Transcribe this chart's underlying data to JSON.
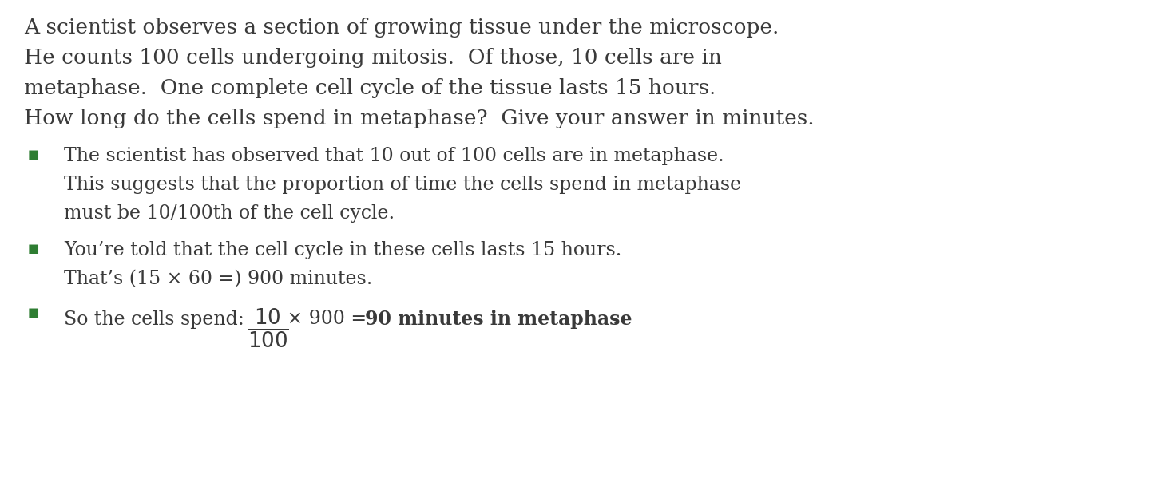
{
  "background_color": "#ffffff",
  "figsize": [
    14.4,
    6.19
  ],
  "dpi": 100,
  "font_family": "DejaVu Serif",
  "text_color": "#3a3a3a",
  "bullet_color": "#2e7d32",
  "intro_fontsize": 19,
  "body_fontsize": 17,
  "bullet_char": "■",
  "intro_lines": [
    "A scientist observes a section of growing tissue under the microscope.",
    "He counts 100 cells undergoing mitosis.  Of those, 10 cells are in",
    "metaphase.  One complete cell cycle of the tissue lasts 15 hours.",
    "How long do the cells spend in metaphase?  Give your answer in minutes."
  ],
  "bullet1_lines": [
    "The scientist has observed that 10 out of 100 cells are in metaphase.",
    "This suggests that the proportion of time the cells spend in metaphase",
    "must be 10/100th of the cell cycle."
  ],
  "bullet2_lines": [
    "You’re told that the cell cycle in these cells lasts 15 hours.",
    "That’s (15 × 60 =) 900 minutes."
  ],
  "last_prefix": "So the cells spend:  ",
  "last_suffix": " × 900 = ",
  "last_bold": "90 minutes in metaphase",
  "last_period": "."
}
